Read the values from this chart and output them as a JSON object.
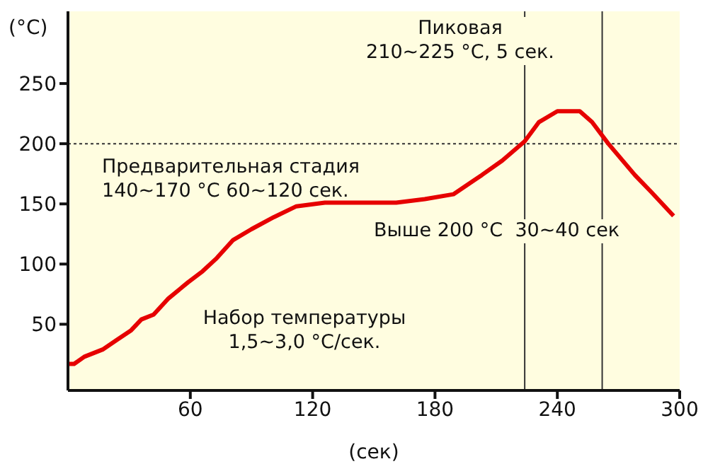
{
  "chart_data": {
    "type": "line",
    "xlabel": "(сек)",
    "ylabel": "(°C)",
    "x": [
      0,
      3,
      8,
      17,
      24,
      31,
      36,
      42,
      49,
      59,
      66,
      73,
      81,
      90,
      101,
      112,
      126,
      161,
      175,
      189,
      203,
      213,
      224,
      231,
      240,
      251,
      257,
      265,
      278,
      286,
      297
    ],
    "series": [
      {
        "color": "#e60000",
        "values": [
          17,
          17,
          23,
          29,
          37,
          45,
          54,
          58,
          71,
          85,
          94,
          105,
          120,
          129,
          139,
          148,
          151,
          151,
          154,
          158,
          174,
          186,
          202,
          218,
          227,
          227,
          218,
          200,
          174,
          160,
          140
        ]
      }
    ],
    "xlim": [
      0,
      300
    ],
    "xticks": [
      60,
      120,
      180,
      240,
      300
    ],
    "ylim": [
      -5,
      310
    ],
    "yticks": [
      50,
      100,
      150,
      200,
      250
    ],
    "grid": false,
    "legend": false,
    "marker": "none",
    "line_style": "solid",
    "ref_lines": [
      {
        "axis": "y",
        "value": 200,
        "line_style": "dotted",
        "color": "#333333"
      },
      {
        "axis": "x",
        "value": 224,
        "line_style": "solid",
        "color": "#333333"
      },
      {
        "axis": "x",
        "value": 262,
        "line_style": "solid",
        "color": "#333333"
      }
    ],
    "annotations": [
      "Пиковая\n210~225 °C, 5 сек.",
      "Предварительная стадия\n140~170 °C 60~120 сек.",
      "Выше 200 °C  30~40 сек",
      "Набор температуры\n1,5~3,0 °C/сек."
    ]
  }
}
